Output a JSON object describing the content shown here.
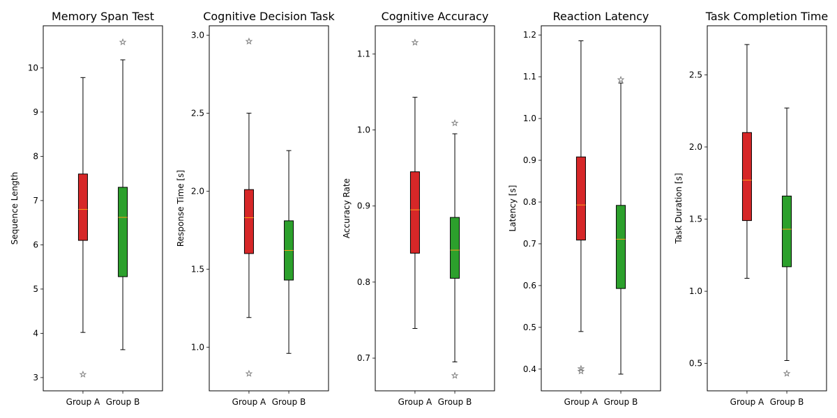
{
  "chart_data": [
    {
      "type": "box",
      "title": "Memory Span Test",
      "xlabel": "",
      "ylabel": "Sequence Length",
      "ylim": [
        2.7,
        10.95
      ],
      "yticks": [
        3,
        4,
        5,
        6,
        7,
        8,
        9,
        10
      ],
      "categories": [
        "Group A",
        "Group B"
      ],
      "colors": [
        "#d62728",
        "#2ca02c"
      ],
      "boxes": [
        {
          "group": "Group A",
          "q1": 6.1,
          "median": 6.8,
          "q3": 7.6,
          "whisker_low": 4.02,
          "whisker_high": 9.78,
          "outliers": [
            3.07
          ]
        },
        {
          "group": "Group B",
          "q1": 5.28,
          "median": 6.62,
          "q3": 7.3,
          "whisker_low": 3.63,
          "whisker_high": 10.18,
          "outliers": [
            10.58
          ]
        }
      ]
    },
    {
      "type": "box",
      "title": "Cognitive Decision Task",
      "xlabel": "",
      "ylabel": "Response Time [s]",
      "ylim": [
        0.72,
        3.06
      ],
      "yticks": [
        1.0,
        1.5,
        2.0,
        2.5,
        3.0
      ],
      "ytick_labels": [
        "1.0",
        "1.5",
        "2.0",
        "2.5",
        "3.0"
      ],
      "categories": [
        "Group A",
        "Group B"
      ],
      "colors": [
        "#d62728",
        "#2ca02c"
      ],
      "boxes": [
        {
          "group": "Group A",
          "q1": 1.6,
          "median": 1.83,
          "q3": 2.01,
          "whisker_low": 1.19,
          "whisker_high": 2.5,
          "outliers": [
            0.83,
            2.96
          ]
        },
        {
          "group": "Group B",
          "q1": 1.43,
          "median": 1.62,
          "q3": 1.81,
          "whisker_low": 0.96,
          "whisker_high": 2.26,
          "outliers": []
        }
      ]
    },
    {
      "type": "box",
      "title": "Cognitive Accuracy",
      "xlabel": "",
      "ylabel": "Accuracy Rate",
      "ylim": [
        0.657,
        1.137
      ],
      "yticks": [
        0.7,
        0.8,
        0.9,
        1.0,
        1.1
      ],
      "ytick_labels": [
        "0.7",
        "0.8",
        "0.9",
        "1.0",
        "1.1"
      ],
      "categories": [
        "Group A",
        "Group B"
      ],
      "colors": [
        "#d62728",
        "#2ca02c"
      ],
      "boxes": [
        {
          "group": "Group A",
          "q1": 0.838,
          "median": 0.895,
          "q3": 0.945,
          "whisker_low": 0.739,
          "whisker_high": 1.043,
          "outliers": [
            1.115
          ]
        },
        {
          "group": "Group B",
          "q1": 0.805,
          "median": 0.842,
          "q3": 0.885,
          "whisker_low": 0.695,
          "whisker_high": 0.995,
          "outliers": [
            0.677,
            1.009
          ]
        }
      ]
    },
    {
      "type": "box",
      "title": "Reaction Latency",
      "xlabel": "",
      "ylabel": "Latency [s]",
      "ylim": [
        0.348,
        1.222
      ],
      "yticks": [
        0.4,
        0.5,
        0.6,
        0.7,
        0.8,
        0.9,
        1.0,
        1.1,
        1.2
      ],
      "ytick_labels": [
        "0.4",
        "0.5",
        "0.6",
        "0.7",
        "0.8",
        "0.9",
        "1.0",
        "1.1",
        "1.2"
      ],
      "categories": [
        "Group A",
        "Group B"
      ],
      "colors": [
        "#d62728",
        "#2ca02c"
      ],
      "boxes": [
        {
          "group": "Group A",
          "q1": 0.709,
          "median": 0.793,
          "q3": 0.908,
          "whisker_low": 0.49,
          "whisker_high": 1.186,
          "outliers": [
            0.395,
            0.401
          ]
        },
        {
          "group": "Group B",
          "q1": 0.593,
          "median": 0.711,
          "q3": 0.792,
          "whisker_low": 0.388,
          "whisker_high": 1.085,
          "outliers": [
            1.093
          ]
        }
      ]
    },
    {
      "type": "box",
      "title": "Task Completion Time",
      "xlabel": "",
      "ylabel": "Task Duration [s]",
      "ylim": [
        0.31,
        2.84
      ],
      "yticks": [
        0.5,
        1.0,
        1.5,
        2.0,
        2.5
      ],
      "ytick_labels": [
        "0.5",
        "1.0",
        "1.5",
        "2.0",
        "2.5"
      ],
      "categories": [
        "Group A",
        "Group B"
      ],
      "colors": [
        "#d62728",
        "#2ca02c"
      ],
      "boxes": [
        {
          "group": "Group A",
          "q1": 1.49,
          "median": 1.77,
          "q3": 2.1,
          "whisker_low": 1.09,
          "whisker_high": 2.71,
          "outliers": []
        },
        {
          "group": "Group B",
          "q1": 1.17,
          "median": 1.43,
          "q3": 1.66,
          "whisker_low": 0.52,
          "whisker_high": 2.27,
          "outliers": [
            0.43
          ]
        }
      ]
    }
  ]
}
